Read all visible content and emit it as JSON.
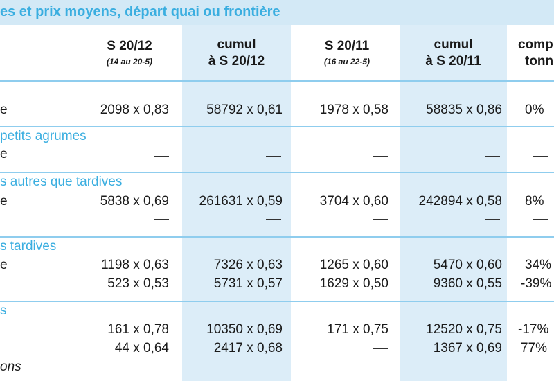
{
  "title": "es et prix moyens, départ quai ou frontière",
  "columns": [
    {
      "label": "S 20/12",
      "sub": "(14 au 20-5)"
    },
    {
      "label": "cumul",
      "label2": "à S 20/12",
      "sub": ""
    },
    {
      "label": "S 20/11",
      "sub": "(16 au 22-5)"
    },
    {
      "label": "cumul",
      "label2": "à S 20/11",
      "sub": ""
    },
    {
      "label": "comp",
      "label2": "tonn",
      "sub": ""
    }
  ],
  "sections": [
    {
      "label": "",
      "rows": [
        {
          "label": "e",
          "values": [
            "2098 x 0,83",
            "58792 x 0,61",
            "1978 x 0,58",
            "58835 x 0,86",
            "0%"
          ]
        }
      ]
    },
    {
      "label": "petits agrumes",
      "rows": [
        {
          "label": "e",
          "values": [
            "—",
            "—",
            "—",
            "—",
            "—"
          ]
        }
      ]
    },
    {
      "label": "s autres que tardives",
      "rows": [
        {
          "label": "e",
          "values": [
            "5838 x 0,69",
            "261631 x 0,59",
            "3704 x 0,60",
            "242894 x 0,58",
            "8%"
          ]
        },
        {
          "label": "",
          "values": [
            "—",
            "—",
            "—",
            "—",
            "—"
          ]
        }
      ]
    },
    {
      "label": "s tardives",
      "rows": [
        {
          "label": "e",
          "values": [
            "1198 x 0,63",
            "7326 x 0,63",
            "1265 x 0,60",
            "5470 x 0,60",
            "34%"
          ]
        },
        {
          "label": "",
          "values": [
            "523 x 0,53",
            "5731 x 0,57",
            "1629 x 0,50",
            "9360 x 0,55",
            "-39%"
          ]
        }
      ]
    },
    {
      "label": "s",
      "rows": [
        {
          "label": "",
          "values": [
            "161 x 0,78",
            "10350 x 0,69",
            "171 x 0,75",
            "12520 x 0,75",
            "-17%"
          ]
        },
        {
          "label": "",
          "values": [
            "44 x 0,64",
            "2417 x 0,68",
            "—",
            "1367 x 0,69",
            "77%"
          ]
        },
        {
          "label": "ons",
          "values": [
            "",
            "",
            "",
            "",
            ""
          ]
        }
      ]
    }
  ]
}
